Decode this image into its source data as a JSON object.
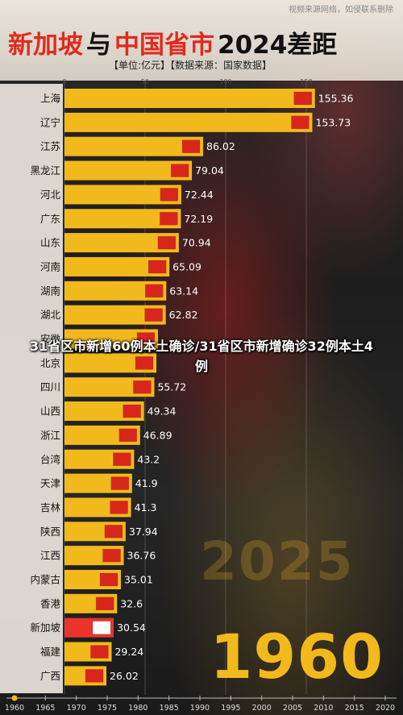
{
  "header": {
    "title_part1": "新加坡",
    "title_part2": "与",
    "title_part3": "中国省市",
    "title_part4": "2024差距",
    "subtitle": "【单位:亿元】【数据来源：国家数据】",
    "watermark": "视频来源网络，如侵联系删除"
  },
  "overlay_text": "31省区市新增60例本土确诊/31省区市新增确诊32例本土4例",
  "current_year": "1960",
  "background_year": "2025",
  "colors": {
    "bar": "#f2b91c",
    "highlight_bar": "#e8342a",
    "title_red": "#e22a1e"
  },
  "chart_data": {
    "type": "bar",
    "orientation": "horizontal",
    "categories": [
      "上海",
      "辽宁",
      "江苏",
      "黑龙江",
      "河北",
      "广东",
      "山东",
      "河南",
      "湖南",
      "湖北",
      "安徽",
      "北京",
      "四川",
      "山西",
      "浙江",
      "台湾",
      "天津",
      "吉林",
      "陕西",
      "江西",
      "内蒙古",
      "香港",
      "新加坡",
      "福建",
      "广西"
    ],
    "values": [
      155.36,
      153.73,
      86.02,
      79.04,
      72.44,
      72.19,
      70.94,
      65.09,
      63.14,
      62.82,
      58.0,
      57.0,
      55.72,
      49.34,
      46.89,
      43.2,
      41.9,
      41.3,
      37.94,
      36.76,
      35.01,
      32.6,
      30.54,
      29.24,
      26.02
    ],
    "value_labels": [
      "155.36",
      "153.73",
      "86.02",
      "79.04",
      "72.44",
      "72.19",
      "70.94",
      "65.09",
      "63.14",
      "62.82",
      "",
      "",
      "55.72",
      "49.34",
      "46.89",
      "43.2",
      "41.9",
      "41.3",
      "37.94",
      "36.76",
      "35.01",
      "32.6",
      "30.54",
      "29.24",
      "26.02"
    ],
    "highlight": "新加坡",
    "value_axis_ticks": [
      "0",
      "50",
      "100",
      "150"
    ],
    "xlim": [
      0,
      160
    ],
    "timeline_ticks": [
      "1960",
      "1965",
      "1970",
      "1975",
      "1980",
      "1985",
      "1990",
      "1995",
      "2000",
      "2005",
      "2010",
      "2015",
      "2020"
    ]
  }
}
